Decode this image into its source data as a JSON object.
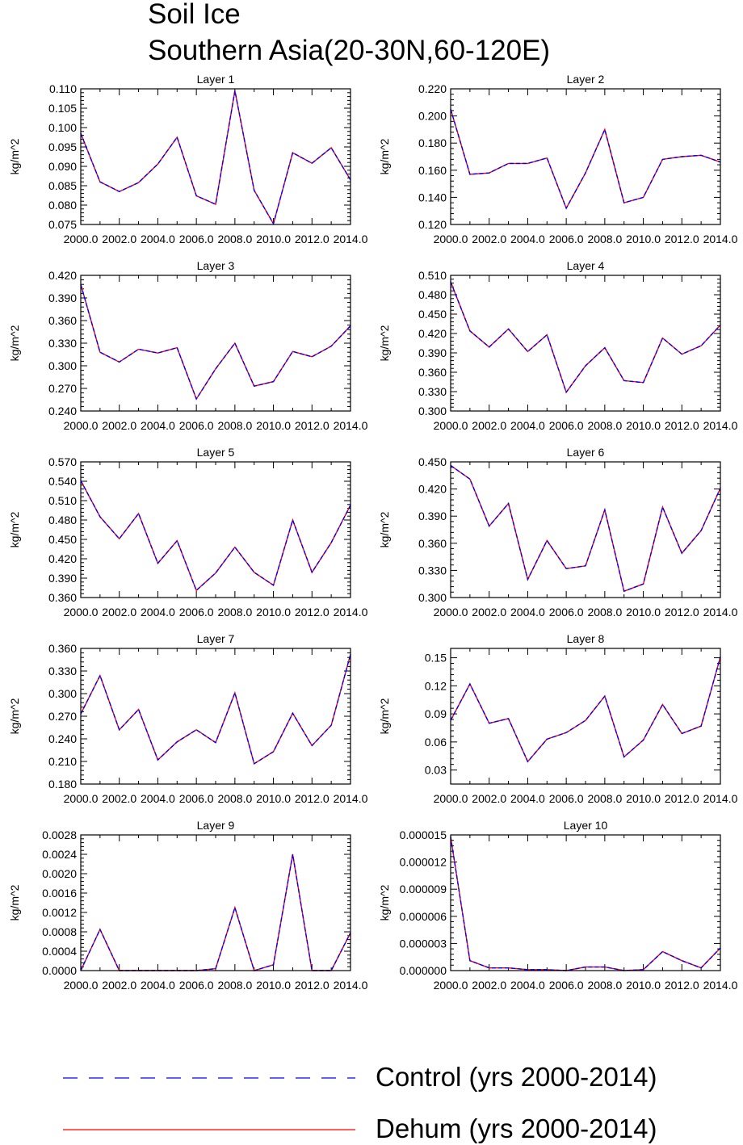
{
  "figure": {
    "title_line1": "Soil Ice",
    "title_line2": "Southern Asia(20-30N,60-120E)"
  },
  "legend": [
    {
      "label": "Control (yrs 2000-2014)",
      "color": "#0000ff",
      "style": "dashed"
    },
    {
      "label": "Dehum (yrs 2000-2014)",
      "color": "#ff0000",
      "style": "solid"
    }
  ],
  "chart_data": [
    {
      "type": "line",
      "title": "Layer 1",
      "ylabel": "kg/m^2",
      "xlim": [
        2000,
        2014
      ],
      "ylim": [
        0.075,
        0.11
      ],
      "xticks": [
        "2000.0",
        "2002.0",
        "2004.0",
        "2006.0",
        "2008.0",
        "2010.0",
        "2012.0",
        "2014.0"
      ],
      "yticks": [
        "0.075",
        "0.080",
        "0.085",
        "0.090",
        "0.095",
        "0.100",
        "0.105",
        "0.110"
      ],
      "x": [
        2000,
        2001,
        2002,
        2003,
        2004,
        2005,
        2006,
        2007,
        2008,
        2009,
        2010,
        2011,
        2012,
        2013,
        2014
      ],
      "series": [
        {
          "name": "Control (yrs 2000-2014)",
          "values": [
            0.0985,
            0.086,
            0.0835,
            0.0858,
            0.0906,
            0.0975,
            0.0824,
            0.0802,
            0.1095,
            0.0838,
            0.0752,
            0.0935,
            0.0908,
            0.0948,
            0.0865
          ]
        },
        {
          "name": "Dehum (yrs 2000-2014)",
          "values": [
            0.0985,
            0.086,
            0.0835,
            0.0858,
            0.0906,
            0.0975,
            0.0824,
            0.0802,
            0.1095,
            0.0838,
            0.0752,
            0.0935,
            0.0908,
            0.0948,
            0.0865
          ]
        }
      ]
    },
    {
      "type": "line",
      "title": "Layer 2",
      "ylabel": "kg/m^2",
      "xlim": [
        2000,
        2014
      ],
      "ylim": [
        0.12,
        0.22
      ],
      "xticks": [
        "2000.0",
        "2002.0",
        "2004.0",
        "2006.0",
        "2008.0",
        "2010.0",
        "2012.0",
        "2014.0"
      ],
      "yticks": [
        "0.120",
        "0.140",
        "0.160",
        "0.180",
        "0.200",
        "0.220"
      ],
      "x": [
        2000,
        2001,
        2002,
        2003,
        2004,
        2005,
        2006,
        2007,
        2008,
        2009,
        2010,
        2011,
        2012,
        2013,
        2014
      ],
      "series": [
        {
          "name": "Control (yrs 2000-2014)",
          "values": [
            0.205,
            0.157,
            0.158,
            0.165,
            0.165,
            0.169,
            0.132,
            0.158,
            0.19,
            0.136,
            0.14,
            0.168,
            0.17,
            0.171,
            0.166
          ]
        },
        {
          "name": "Dehum (yrs 2000-2014)",
          "values": [
            0.205,
            0.157,
            0.158,
            0.165,
            0.165,
            0.169,
            0.132,
            0.158,
            0.19,
            0.136,
            0.14,
            0.168,
            0.17,
            0.171,
            0.166
          ]
        }
      ]
    },
    {
      "type": "line",
      "title": "Layer 3",
      "ylabel": "kg/m^2",
      "xlim": [
        2000,
        2014
      ],
      "ylim": [
        0.24,
        0.42
      ],
      "xticks": [
        "2000.0",
        "2002.0",
        "2004.0",
        "2006.0",
        "2008.0",
        "2010.0",
        "2012.0",
        "2014.0"
      ],
      "yticks": [
        "0.240",
        "0.270",
        "0.300",
        "0.330",
        "0.360",
        "0.390",
        "0.420"
      ],
      "x": [
        2000,
        2001,
        2002,
        2003,
        2004,
        2005,
        2006,
        2007,
        2008,
        2009,
        2010,
        2011,
        2012,
        2013,
        2014
      ],
      "series": [
        {
          "name": "Control (yrs 2000-2014)",
          "values": [
            0.408,
            0.318,
            0.305,
            0.322,
            0.317,
            0.324,
            0.256,
            0.296,
            0.33,
            0.273,
            0.279,
            0.319,
            0.312,
            0.326,
            0.353
          ]
        },
        {
          "name": "Dehum (yrs 2000-2014)",
          "values": [
            0.408,
            0.318,
            0.305,
            0.322,
            0.317,
            0.324,
            0.256,
            0.296,
            0.33,
            0.273,
            0.279,
            0.319,
            0.312,
            0.326,
            0.353
          ]
        }
      ]
    },
    {
      "type": "line",
      "title": "Layer 4",
      "ylabel": "kg/m^2",
      "xlim": [
        2000,
        2014
      ],
      "ylim": [
        0.3,
        0.51
      ],
      "xticks": [
        "2000.0",
        "2002.0",
        "2004.0",
        "2006.0",
        "2008.0",
        "2010.0",
        "2012.0",
        "2014.0"
      ],
      "yticks": [
        "0.300",
        "0.330",
        "0.360",
        "0.390",
        "0.420",
        "0.450",
        "0.480",
        "0.510"
      ],
      "x": [
        2000,
        2001,
        2002,
        2003,
        2004,
        2005,
        2006,
        2007,
        2008,
        2009,
        2010,
        2011,
        2012,
        2013,
        2014
      ],
      "series": [
        {
          "name": "Control (yrs 2000-2014)",
          "values": [
            0.5,
            0.424,
            0.399,
            0.427,
            0.392,
            0.418,
            0.329,
            0.37,
            0.398,
            0.347,
            0.344,
            0.413,
            0.388,
            0.401,
            0.433
          ]
        },
        {
          "name": "Dehum (yrs 2000-2014)",
          "values": [
            0.5,
            0.424,
            0.399,
            0.427,
            0.392,
            0.418,
            0.329,
            0.37,
            0.398,
            0.347,
            0.344,
            0.413,
            0.388,
            0.401,
            0.433
          ]
        }
      ]
    },
    {
      "type": "line",
      "title": "Layer 5",
      "ylabel": "kg/m^2",
      "xlim": [
        2000,
        2014
      ],
      "ylim": [
        0.36,
        0.57
      ],
      "xticks": [
        "2000.0",
        "2002.0",
        "2004.0",
        "2006.0",
        "2008.0",
        "2010.0",
        "2012.0",
        "2014.0"
      ],
      "yticks": [
        "0.360",
        "0.390",
        "0.420",
        "0.450",
        "0.480",
        "0.510",
        "0.540",
        "0.570"
      ],
      "x": [
        2000,
        2001,
        2002,
        2003,
        2004,
        2005,
        2006,
        2007,
        2008,
        2009,
        2010,
        2011,
        2012,
        2013,
        2014
      ],
      "series": [
        {
          "name": "Control (yrs 2000-2014)",
          "values": [
            0.541,
            0.485,
            0.451,
            0.49,
            0.413,
            0.448,
            0.371,
            0.398,
            0.438,
            0.399,
            0.379,
            0.48,
            0.399,
            0.445,
            0.503
          ]
        },
        {
          "name": "Dehum (yrs 2000-2014)",
          "values": [
            0.541,
            0.485,
            0.451,
            0.49,
            0.413,
            0.448,
            0.371,
            0.398,
            0.438,
            0.399,
            0.379,
            0.48,
            0.399,
            0.445,
            0.503
          ]
        }
      ]
    },
    {
      "type": "line",
      "title": "Layer 6",
      "ylabel": "kg/m^2",
      "xlim": [
        2000,
        2014
      ],
      "ylim": [
        0.3,
        0.45
      ],
      "xticks": [
        "2000.0",
        "2002.0",
        "2004.0",
        "2006.0",
        "2008.0",
        "2010.0",
        "2012.0",
        "2014.0"
      ],
      "yticks": [
        "0.300",
        "0.330",
        "0.360",
        "0.390",
        "0.420",
        "0.450"
      ],
      "x": [
        2000,
        2001,
        2002,
        2003,
        2004,
        2005,
        2006,
        2007,
        2008,
        2009,
        2010,
        2011,
        2012,
        2013,
        2014
      ],
      "series": [
        {
          "name": "Control (yrs 2000-2014)",
          "values": [
            0.446,
            0.431,
            0.379,
            0.404,
            0.32,
            0.363,
            0.332,
            0.335,
            0.397,
            0.307,
            0.315,
            0.4,
            0.349,
            0.374,
            0.421
          ]
        },
        {
          "name": "Dehum (yrs 2000-2014)",
          "values": [
            0.446,
            0.431,
            0.379,
            0.404,
            0.32,
            0.363,
            0.332,
            0.335,
            0.397,
            0.307,
            0.315,
            0.4,
            0.349,
            0.374,
            0.421
          ]
        }
      ]
    },
    {
      "type": "line",
      "title": "Layer 7",
      "ylabel": "kg/m^2",
      "xlim": [
        2000,
        2014
      ],
      "ylim": [
        0.18,
        0.36
      ],
      "xticks": [
        "2000.0",
        "2002.0",
        "2004.0",
        "2006.0",
        "2008.0",
        "2010.0",
        "2012.0",
        "2014.0"
      ],
      "yticks": [
        "0.180",
        "0.210",
        "0.240",
        "0.270",
        "0.300",
        "0.330",
        "0.360"
      ],
      "x": [
        2000,
        2001,
        2002,
        2003,
        2004,
        2005,
        2006,
        2007,
        2008,
        2009,
        2010,
        2011,
        2012,
        2013,
        2014
      ],
      "series": [
        {
          "name": "Control (yrs 2000-2014)",
          "values": [
            0.273,
            0.324,
            0.252,
            0.279,
            0.212,
            0.236,
            0.252,
            0.235,
            0.301,
            0.207,
            0.223,
            0.274,
            0.231,
            0.258,
            0.352
          ]
        },
        {
          "name": "Dehum (yrs 2000-2014)",
          "values": [
            0.273,
            0.324,
            0.252,
            0.279,
            0.212,
            0.236,
            0.252,
            0.235,
            0.301,
            0.207,
            0.223,
            0.274,
            0.231,
            0.258,
            0.352
          ]
        }
      ]
    },
    {
      "type": "line",
      "title": "Layer 8",
      "ylabel": "kg/m^2",
      "xlim": [
        2000,
        2014
      ],
      "ylim": [
        0.015,
        0.16
      ],
      "xticks": [
        "2000.0",
        "2002.0",
        "2004.0",
        "2006.0",
        "2008.0",
        "2010.0",
        "2012.0",
        "2014.0"
      ],
      "yticks": [
        "0.03",
        "0.06",
        "0.09",
        "0.12",
        "0.15"
      ],
      "ytick_values": [
        0.03,
        0.06,
        0.09,
        0.12,
        0.15
      ],
      "x": [
        2000,
        2001,
        2002,
        2003,
        2004,
        2005,
        2006,
        2007,
        2008,
        2009,
        2010,
        2011,
        2012,
        2013,
        2014
      ],
      "series": [
        {
          "name": "Control (yrs 2000-2014)",
          "values": [
            0.083,
            0.122,
            0.08,
            0.085,
            0.039,
            0.063,
            0.07,
            0.083,
            0.109,
            0.044,
            0.062,
            0.1,
            0.069,
            0.077,
            0.151
          ]
        },
        {
          "name": "Dehum (yrs 2000-2014)",
          "values": [
            0.083,
            0.122,
            0.08,
            0.085,
            0.039,
            0.063,
            0.07,
            0.083,
            0.109,
            0.044,
            0.062,
            0.1,
            0.069,
            0.077,
            0.151
          ]
        }
      ]
    },
    {
      "type": "line",
      "title": "Layer 9",
      "ylabel": "kg/m^2",
      "xlim": [
        2000,
        2014
      ],
      "ylim": [
        0,
        0.0028
      ],
      "xticks": [
        "2000.0",
        "2002.0",
        "2004.0",
        "2006.0",
        "2008.0",
        "2010.0",
        "2012.0",
        "2014.0"
      ],
      "yticks": [
        "0.0000",
        "0.0004",
        "0.0008",
        "0.0012",
        "0.0016",
        "0.0020",
        "0.0024",
        "0.0028"
      ],
      "x": [
        2000,
        2001,
        2002,
        2003,
        2004,
        2005,
        2006,
        2007,
        2008,
        2009,
        2010,
        2011,
        2012,
        2013,
        2014
      ],
      "series": [
        {
          "name": "Control (yrs 2000-2014)",
          "values": [
            0.0,
            0.00085,
            0.0,
            0.0,
            0.0,
            0.0,
            0.0,
            4e-05,
            0.0013,
            0.0,
            0.00012,
            0.0024,
            0.0,
            0.0,
            0.00078
          ]
        },
        {
          "name": "Dehum (yrs 2000-2014)",
          "values": [
            0.0,
            0.00085,
            0.0,
            0.0,
            0.0,
            0.0,
            0.0,
            4e-05,
            0.0013,
            0.0,
            0.00012,
            0.0024,
            0.0,
            0.0,
            0.00078
          ]
        }
      ]
    },
    {
      "type": "line",
      "title": "Layer 10",
      "ylabel": "kg/m^2",
      "xlim": [
        2000,
        2014
      ],
      "ylim": [
        0,
        1.5e-05
      ],
      "xticks": [
        "2000.0",
        "2002.0",
        "2004.0",
        "2006.0",
        "2008.0",
        "2010.0",
        "2012.0",
        "2014.0"
      ],
      "yticks": [
        "0.000000",
        "0.000003",
        "0.000006",
        "0.000009",
        "0.000012",
        "0.000015"
      ],
      "x": [
        2000,
        2001,
        2002,
        2003,
        2004,
        2005,
        2006,
        2007,
        2008,
        2009,
        2010,
        2011,
        2012,
        2013,
        2014
      ],
      "series": [
        {
          "name": "Control (yrs 2000-2014)",
          "values": [
            1.48e-05,
            1.1e-06,
            3e-07,
            3e-07,
            1e-07,
            1e-07,
            0.0,
            4e-07,
            4e-07,
            0.0,
            1e-07,
            2.1e-06,
            1.1e-06,
            3e-07,
            2.5e-06
          ]
        },
        {
          "name": "Dehum (yrs 2000-2014)",
          "values": [
            1.48e-05,
            1.1e-06,
            3e-07,
            3e-07,
            1e-07,
            1e-07,
            0.0,
            4e-07,
            4e-07,
            0.0,
            1e-07,
            2.1e-06,
            1.1e-06,
            3e-07,
            2.5e-06
          ]
        }
      ]
    }
  ]
}
